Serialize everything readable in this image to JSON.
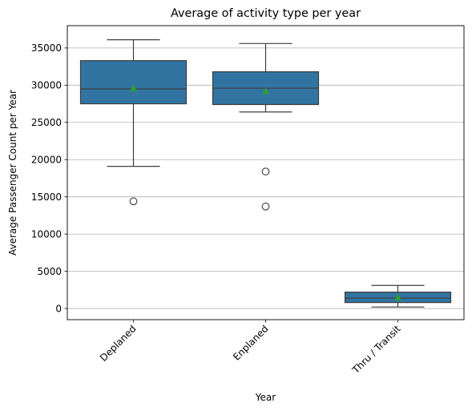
{
  "chart_data": {
    "type": "box",
    "title": "Average of activity type per year",
    "xlabel": "Year",
    "ylabel": "Average Passenger Count per Year",
    "categories": [
      "Deplaned",
      "Enplaned",
      "Thru / Transit"
    ],
    "ylim": [
      -1500,
      38000
    ],
    "yticks": [
      0,
      5000,
      10000,
      15000,
      20000,
      25000,
      30000,
      35000
    ],
    "grid": "y",
    "box_color": "#3274a1",
    "mean_marker_color": "#2ca02c",
    "boxes": [
      {
        "category": "Deplaned",
        "whisker_low": 19100,
        "q1": 27500,
        "median": 29500,
        "q3": 33300,
        "whisker_high": 36100,
        "mean": 29600,
        "outliers": [
          14400
        ]
      },
      {
        "category": "Enplaned",
        "whisker_low": 26400,
        "q1": 27400,
        "median": 29600,
        "q3": 31800,
        "whisker_high": 35600,
        "mean": 29200,
        "outliers": [
          18400,
          13700
        ]
      },
      {
        "category": "Thru / Transit",
        "whisker_low": 200,
        "q1": 800,
        "median": 1400,
        "q3": 2200,
        "whisker_high": 3100,
        "mean": 1500,
        "outliers": []
      }
    ]
  }
}
